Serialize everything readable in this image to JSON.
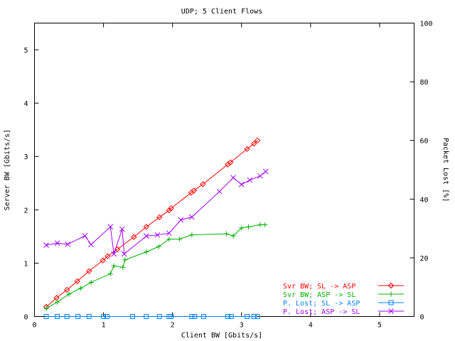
{
  "chart_data": {
    "type": "line",
    "title": "UDP; 5 Client Flows",
    "xlabel": "Client BW [Gbits/s]",
    "ylabel": "Server BW [Gbits/s]",
    "y2label": "Packet Lost [%]",
    "xlim": [
      0,
      5.5
    ],
    "ylim": [
      0,
      5.5
    ],
    "y2lim": [
      0,
      100
    ],
    "xticks": [
      0,
      1,
      2,
      3,
      4,
      5
    ],
    "yticks": [
      0,
      1,
      2,
      3,
      4,
      5
    ],
    "y2ticks": [
      0,
      20,
      40,
      60,
      80,
      100
    ],
    "grid": false,
    "legend_position": "bottom-right",
    "series": [
      {
        "name": "Svr BW;  SL -> ASP",
        "axis": "y",
        "color": "#ff0000",
        "marker": "diamond",
        "x": [
          0.17,
          0.32,
          0.47,
          0.62,
          0.79,
          0.99,
          1.06,
          1.2,
          1.44,
          1.62,
          1.81,
          1.95,
          1.98,
          2.27,
          2.31,
          2.44,
          2.8,
          2.84,
          3.08,
          3.18,
          3.23
        ],
        "y": [
          0.18,
          0.35,
          0.5,
          0.66,
          0.85,
          1.05,
          1.13,
          1.26,
          1.49,
          1.68,
          1.86,
          1.99,
          2.03,
          2.32,
          2.36,
          2.48,
          2.85,
          2.89,
          3.14,
          3.24,
          3.3
        ]
      },
      {
        "name": "Svr BW;  ASP -> SL",
        "axis": "y",
        "color": "#00b000",
        "marker": "plus",
        "x": [
          0.17,
          0.33,
          0.5,
          0.67,
          0.82,
          1.1,
          1.15,
          1.28,
          1.31,
          1.62,
          1.8,
          1.95,
          2.1,
          2.28,
          2.78,
          2.88,
          3.0,
          3.1,
          3.27,
          3.34
        ],
        "y": [
          0.15,
          0.27,
          0.42,
          0.53,
          0.64,
          0.8,
          0.95,
          0.92,
          1.06,
          1.21,
          1.31,
          1.45,
          1.45,
          1.53,
          1.55,
          1.51,
          1.66,
          1.68,
          1.72,
          1.72
        ]
      },
      {
        "name": "P. Lost; SL -> ASP",
        "axis": "y2",
        "color": "#0080ff",
        "marker": "square",
        "x": [
          0.17,
          0.33,
          0.47,
          0.63,
          0.79,
          1.0,
          1.05,
          1.42,
          1.62,
          1.81,
          1.95,
          1.98,
          2.28,
          2.32,
          2.45,
          2.8,
          2.85,
          3.08,
          3.18,
          3.23
        ],
        "y": [
          0,
          0,
          0,
          0,
          0,
          0,
          0,
          0,
          0,
          0,
          0,
          0,
          0,
          0,
          0,
          0,
          0,
          0,
          0,
          0
        ]
      },
      {
        "name": "P. Lost; ASP -> SL",
        "axis": "y2",
        "color": "#a000ff",
        "marker": "cross",
        "x": [
          0.17,
          0.33,
          0.48,
          0.73,
          0.82,
          1.1,
          1.15,
          1.27,
          1.3,
          1.62,
          1.78,
          1.95,
          2.12,
          2.28,
          2.68,
          2.88,
          3.0,
          3.12,
          3.27,
          3.35
        ],
        "y": [
          24.3,
          25.0,
          24.6,
          27.5,
          24.5,
          30.6,
          21.3,
          29.8,
          21.3,
          27.4,
          27.8,
          28.4,
          32.9,
          33.9,
          42.6,
          47.3,
          45.0,
          46.5,
          47.9,
          49.4
        ]
      }
    ]
  }
}
